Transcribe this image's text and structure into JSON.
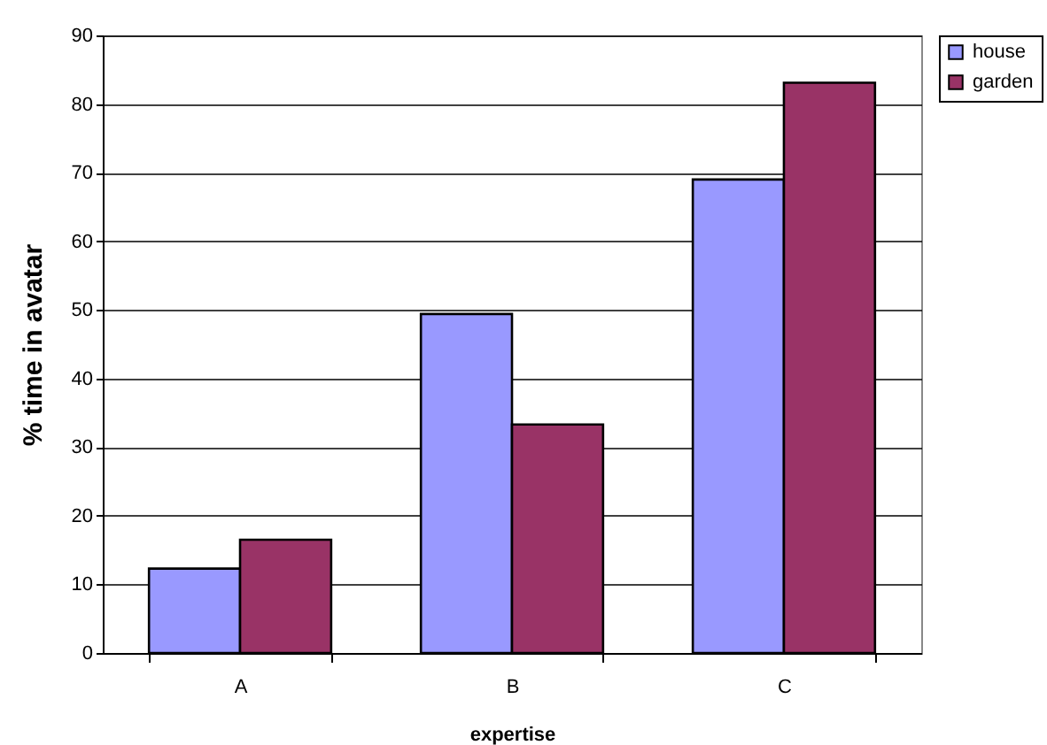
{
  "chart_data": {
    "type": "bar",
    "xlabel": "expertise",
    "ylabel": "% time in avatar",
    "categories": [
      "A",
      "B",
      "C"
    ],
    "series": [
      {
        "name": "house",
        "color": "#9999ff",
        "values": [
          12.3,
          49.4,
          69.0
        ]
      },
      {
        "name": "garden",
        "color": "#993366",
        "values": [
          16.5,
          33.3,
          83.1
        ]
      }
    ],
    "ylim": [
      0,
      90
    ],
    "yticks": [
      0,
      10,
      20,
      30,
      40,
      50,
      60,
      70,
      80,
      90
    ],
    "grid": "y",
    "legend": "right"
  }
}
